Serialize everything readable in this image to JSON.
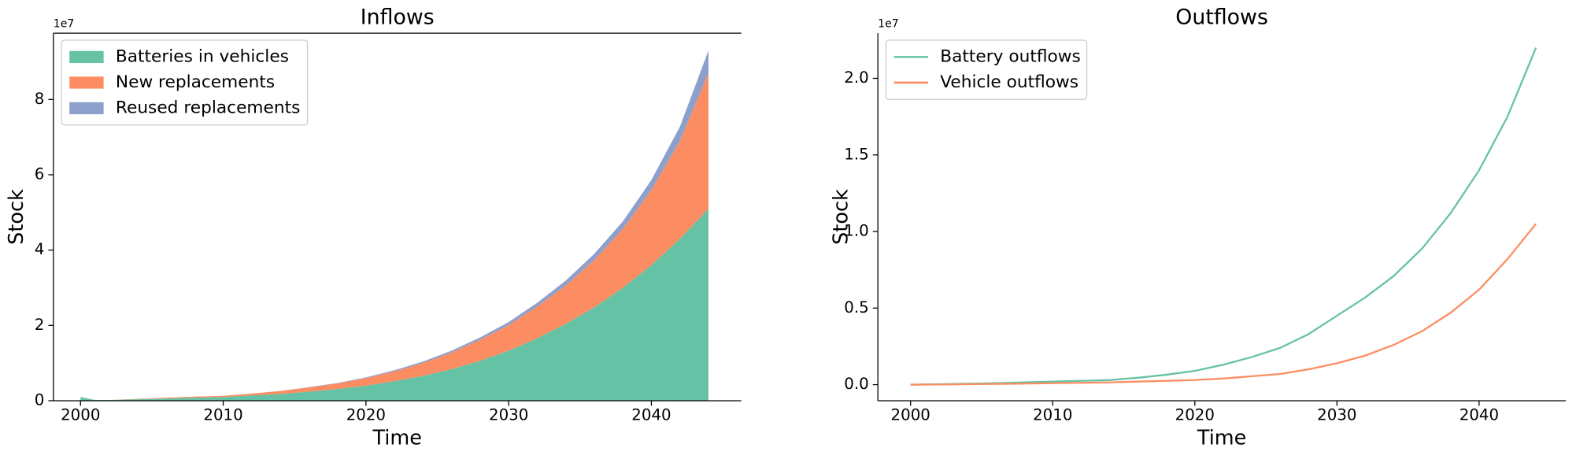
{
  "chart_data": [
    {
      "type": "stacked_area",
      "title": "Inflows",
      "xlabel": "Time",
      "ylabel": "Stock",
      "y_offset_label": "1e7",
      "x": [
        2000,
        2001,
        2002,
        2004,
        2006,
        2008,
        2010,
        2012,
        2014,
        2016,
        2018,
        2020,
        2022,
        2024,
        2026,
        2028,
        2030,
        2032,
        2034,
        2036,
        2038,
        2040,
        2042,
        2044
      ],
      "series": [
        {
          "name": "Batteries in vehicles",
          "color": "#66c2a5",
          "values": [
            0.1,
            0.02,
            0.02,
            0.04,
            0.06,
            0.08,
            0.1,
            0.14,
            0.18,
            0.24,
            0.31,
            0.4,
            0.52,
            0.66,
            0.84,
            1.06,
            1.33,
            1.66,
            2.04,
            2.48,
            3.0,
            3.6,
            4.3,
            5.1
          ]
        },
        {
          "name": "New replacements",
          "color": "#fc8d62",
          "values": [
            0,
            0,
            0,
            0.01,
            0.02,
            0.03,
            0.03,
            0.05,
            0.08,
            0.11,
            0.15,
            0.2,
            0.26,
            0.34,
            0.44,
            0.56,
            0.68,
            0.84,
            1.02,
            1.26,
            1.56,
            2.0,
            2.6,
            3.6
          ]
        },
        {
          "name": "Reused replacements",
          "color": "#8da0cb",
          "values": [
            0,
            0,
            0,
            0,
            0,
            0,
            0,
            0,
            0,
            0.01,
            0.01,
            0.02,
            0.03,
            0.04,
            0.05,
            0.06,
            0.08,
            0.1,
            0.13,
            0.16,
            0.2,
            0.26,
            0.38,
            0.6
          ]
        }
      ],
      "xlim": [
        1998.1,
        2046.3
      ],
      "xticks": [
        2000,
        2010,
        2020,
        2030,
        2040
      ],
      "ylim": [
        0,
        9.76
      ],
      "yticks": [
        0,
        2,
        4,
        6,
        8
      ],
      "legend": "upper left"
    },
    {
      "type": "line",
      "title": "Outflows",
      "xlabel": "Time",
      "ylabel": "Stock",
      "y_offset_label": "1e7",
      "x": [
        2000,
        2002,
        2004,
        2006,
        2008,
        2010,
        2012,
        2014,
        2016,
        2018,
        2020,
        2022,
        2024,
        2026,
        2028,
        2030,
        2032,
        2034,
        2036,
        2038,
        2040,
        2042,
        2044
      ],
      "series": [
        {
          "name": "Battery outflows",
          "color": "#66c2a5",
          "values": [
            0,
            0.003,
            0.006,
            0.01,
            0.015,
            0.02,
            0.025,
            0.03,
            0.045,
            0.065,
            0.09,
            0.13,
            0.18,
            0.24,
            0.33,
            0.45,
            0.57,
            0.71,
            0.89,
            1.12,
            1.4,
            1.75,
            2.2
          ]
        },
        {
          "name": "Vehicle outflows",
          "color": "#fc8d62",
          "values": [
            0,
            0.001,
            0.003,
            0.005,
            0.007,
            0.01,
            0.012,
            0.015,
            0.02,
            0.025,
            0.03,
            0.04,
            0.055,
            0.07,
            0.1,
            0.14,
            0.19,
            0.26,
            0.35,
            0.47,
            0.62,
            0.82,
            1.05
          ]
        }
      ],
      "xlim": [
        1997.7,
        2046.1
      ],
      "xticks": [
        2000,
        2010,
        2020,
        2030,
        2040
      ],
      "ylim": [
        -0.105,
        2.295
      ],
      "yticks": [
        {
          "value": 0,
          "label": "0.0"
        },
        0.5,
        {
          "value": 1,
          "label": "1.0"
        },
        1.5,
        {
          "value": 2,
          "label": "2.0"
        }
      ],
      "legend": "upper left"
    }
  ]
}
